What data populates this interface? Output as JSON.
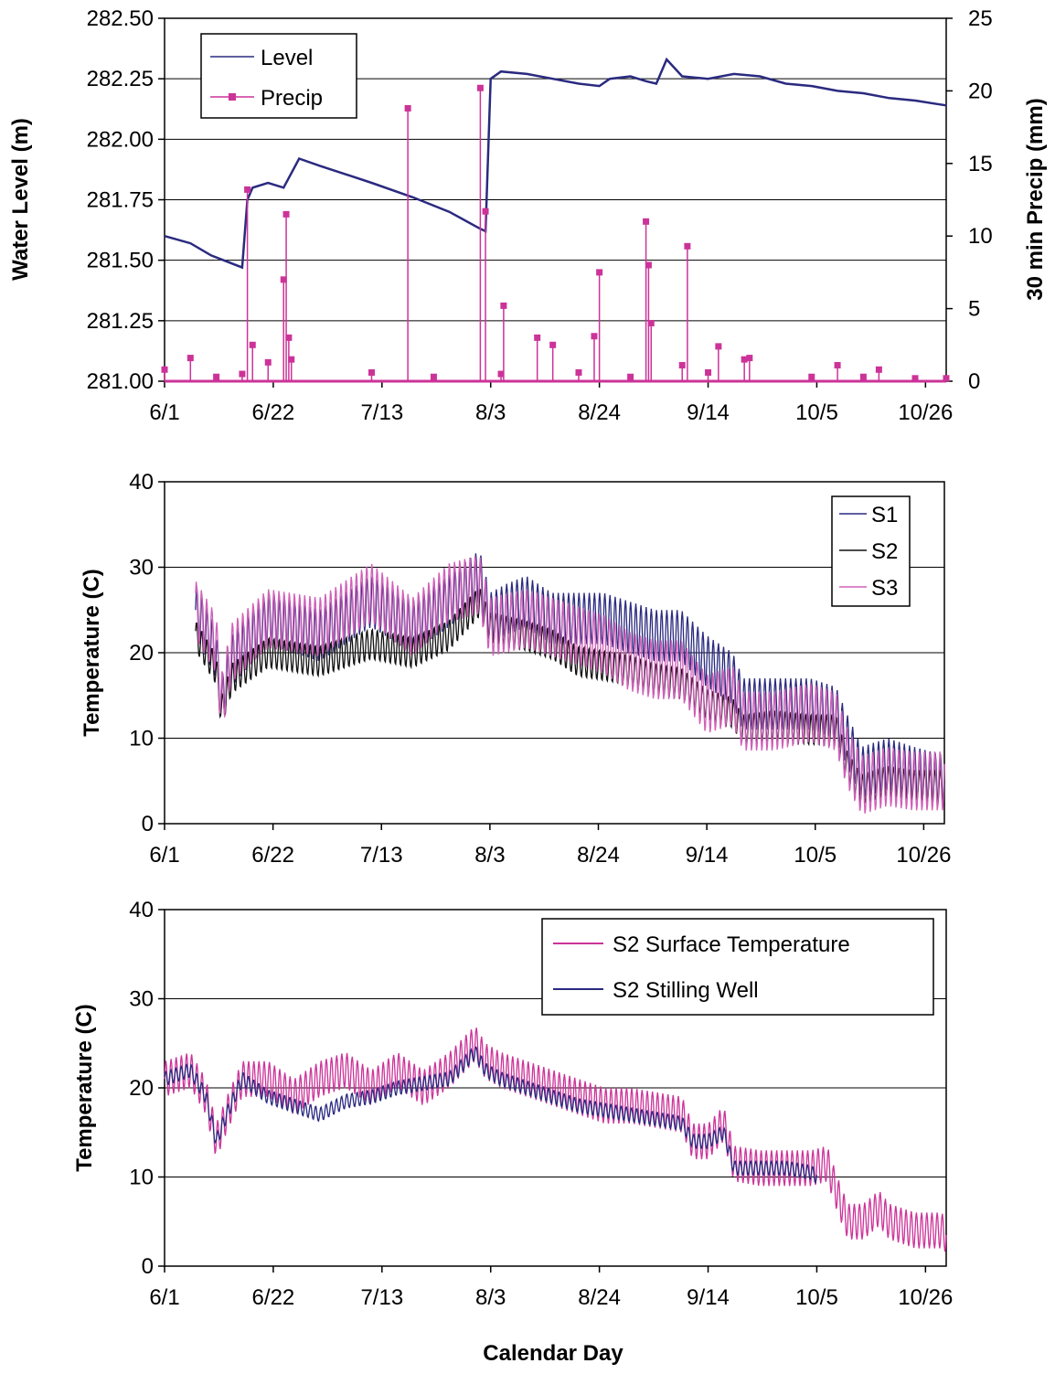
{
  "xlabel": "Calendar Day",
  "x_ticks": [
    "6/1",
    "6/22",
    "7/13",
    "8/3",
    "8/24",
    "9/14",
    "10/5",
    "10/26"
  ],
  "x_tick_days": [
    0,
    21,
    42,
    63,
    84,
    105,
    126,
    147
  ],
  "chart_data": [
    {
      "type": "line",
      "ylabel": "Water Level (m)",
      "y2label": "30 min Precip (mm)",
      "ylim": [
        281.0,
        282.5
      ],
      "y_ticks": [
        "281.00",
        "281.25",
        "281.50",
        "281.75",
        "282.00",
        "282.25",
        "282.50"
      ],
      "y2lim": [
        0,
        25
      ],
      "y2_ticks": [
        "0",
        "5",
        "10",
        "15",
        "20",
        "25"
      ],
      "xlim_days": [
        0,
        151
      ],
      "legend_position": "top-left",
      "grid": "horizontal",
      "series": [
        {
          "name": "Level",
          "color": "#2a2a80",
          "axis": "left",
          "points": [
            [
              0,
              281.6
            ],
            [
              5,
              281.57
            ],
            [
              9,
              281.52
            ],
            [
              15,
              281.47
            ],
            [
              16,
              281.75
            ],
            [
              17,
              281.8
            ],
            [
              20,
              281.82
            ],
            [
              23,
              281.8
            ],
            [
              26,
              281.92
            ],
            [
              30,
              281.89
            ],
            [
              40,
              281.82
            ],
            [
              48,
              281.76
            ],
            [
              55,
              281.7
            ],
            [
              61,
              281.63
            ],
            [
              62,
              281.62
            ],
            [
              63,
              282.25
            ],
            [
              65,
              282.28
            ],
            [
              70,
              282.27
            ],
            [
              75,
              282.25
            ],
            [
              80,
              282.23
            ],
            [
              84,
              282.22
            ],
            [
              86,
              282.25
            ],
            [
              90,
              282.26
            ],
            [
              93,
              282.24
            ],
            [
              95,
              282.23
            ],
            [
              97,
              282.33
            ],
            [
              100,
              282.26
            ],
            [
              105,
              282.25
            ],
            [
              110,
              282.27
            ],
            [
              115,
              282.26
            ],
            [
              120,
              282.23
            ],
            [
              125,
              282.22
            ],
            [
              130,
              282.2
            ],
            [
              135,
              282.19
            ],
            [
              140,
              282.17
            ],
            [
              145,
              282.16
            ],
            [
              151,
              282.14
            ]
          ]
        },
        {
          "name": "Precip",
          "color": "#cc3399",
          "axis": "right",
          "points": [
            [
              0,
              0.8
            ],
            [
              5,
              1.6
            ],
            [
              10,
              0.3
            ],
            [
              15,
              0.5
            ],
            [
              16,
              13.2
            ],
            [
              17,
              2.5
            ],
            [
              20,
              1.3
            ],
            [
              23,
              7
            ],
            [
              23.5,
              11.5
            ],
            [
              24,
              3
            ],
            [
              24.5,
              1.5
            ],
            [
              40,
              0.6
            ],
            [
              47,
              18.8
            ],
            [
              52,
              0.3
            ],
            [
              61,
              20.2
            ],
            [
              62,
              11.7
            ],
            [
              65,
              0.5
            ],
            [
              65.5,
              5.2
            ],
            [
              72,
              3
            ],
            [
              75,
              2.5
            ],
            [
              80,
              0.6
            ],
            [
              83,
              3.1
            ],
            [
              84,
              7.5
            ],
            [
              90,
              0.3
            ],
            [
              93,
              11
            ],
            [
              93.5,
              8
            ],
            [
              94,
              4
            ],
            [
              100,
              1.1
            ],
            [
              101,
              9.3
            ],
            [
              105,
              0.6
            ],
            [
              107,
              2.4
            ],
            [
              112,
              1.5
            ],
            [
              113,
              1.6
            ],
            [
              125,
              0.3
            ],
            [
              130,
              1.1
            ],
            [
              135,
              0.3
            ],
            [
              138,
              0.8
            ],
            [
              145,
              0.2
            ],
            [
              151,
              0.2
            ]
          ]
        }
      ]
    },
    {
      "type": "line",
      "ylabel": "Temperature (C)",
      "ylim": [
        0,
        40
      ],
      "y_ticks": [
        "0",
        "10",
        "20",
        "30",
        "40"
      ],
      "xlim_days": [
        0,
        151
      ],
      "legend_position": "top-right",
      "grid": "horizontal",
      "series": [
        {
          "name": "S1",
          "color": "#2a2a80",
          "base": [
            [
              6,
              25
            ],
            [
              10,
              20
            ],
            [
              11,
              14
            ],
            [
              13,
              19
            ],
            [
              20,
              24
            ],
            [
              30,
              22
            ],
            [
              40,
              26
            ],
            [
              48,
              23
            ],
            [
              55,
              26
            ],
            [
              61,
              29
            ],
            [
              63,
              24
            ],
            [
              66,
              25
            ],
            [
              70,
              26
            ],
            [
              75,
              24
            ],
            [
              80,
              24
            ],
            [
              85,
              24
            ],
            [
              90,
              23
            ],
            [
              95,
              22
            ],
            [
              100,
              22
            ],
            [
              105,
              19
            ],
            [
              110,
              17
            ],
            [
              112,
              14
            ],
            [
              118,
              14
            ],
            [
              125,
              14
            ],
            [
              130,
              13
            ],
            [
              132,
              10
            ],
            [
              135,
              6
            ],
            [
              140,
              7
            ],
            [
              145,
              6
            ],
            [
              151,
              5
            ]
          ],
          "amplitude": 3.0
        },
        {
          "name": "S2",
          "color": "#111111",
          "base": [
            [
              6,
              22
            ],
            [
              10,
              18
            ],
            [
              11,
              13
            ],
            [
              13,
              17
            ],
            [
              20,
              20
            ],
            [
              30,
              19
            ],
            [
              40,
              21
            ],
            [
              48,
              20
            ],
            [
              55,
              22
            ],
            [
              61,
              26
            ],
            [
              63,
              23
            ],
            [
              70,
              22
            ],
            [
              75,
              21
            ],
            [
              80,
              19
            ],
            [
              85,
              18.5
            ],
            [
              90,
              18
            ],
            [
              95,
              17
            ],
            [
              100,
              16.5
            ],
            [
              105,
              14
            ],
            [
              110,
              13
            ],
            [
              112,
              11
            ],
            [
              118,
              11.5
            ],
            [
              125,
              11
            ],
            [
              130,
              11
            ],
            [
              132,
              7
            ],
            [
              135,
              4
            ],
            [
              140,
              5
            ],
            [
              145,
              4.5
            ],
            [
              151,
              4.5
            ]
          ],
          "amplitude": 1.8
        },
        {
          "name": "S3",
          "color": "#d060b8",
          "base": [
            [
              6,
              25
            ],
            [
              10,
              21
            ],
            [
              11,
              14
            ],
            [
              13,
              20
            ],
            [
              20,
              24
            ],
            [
              30,
              23
            ],
            [
              40,
              27
            ],
            [
              48,
              23
            ],
            [
              55,
              27
            ],
            [
              61,
              28
            ],
            [
              63,
              23
            ],
            [
              70,
              24
            ],
            [
              75,
              23
            ],
            [
              80,
              22
            ],
            [
              85,
              21
            ],
            [
              90,
              19
            ],
            [
              95,
              18
            ],
            [
              100,
              18
            ],
            [
              105,
              14
            ],
            [
              110,
              15
            ],
            [
              112,
              12
            ],
            [
              118,
              12
            ],
            [
              125,
              13
            ],
            [
              130,
              12
            ],
            [
              132,
              8
            ],
            [
              135,
              4.5
            ],
            [
              140,
              5.5
            ],
            [
              145,
              5
            ],
            [
              151,
              5
            ]
          ],
          "amplitude": 3.5
        }
      ]
    },
    {
      "type": "line",
      "ylabel": "Temperature (C)",
      "ylim": [
        0,
        40
      ],
      "y_ticks": [
        "0",
        "10",
        "20",
        "30",
        "40"
      ],
      "xlim_days": [
        0,
        151
      ],
      "legend_position": "top-right",
      "grid": "horizontal",
      "series": [
        {
          "name": "S2 Surface Temperature",
          "color": "#cc3399",
          "base": [
            [
              0,
              21
            ],
            [
              5,
              22
            ],
            [
              8,
              19
            ],
            [
              10,
              14
            ],
            [
              12,
              17
            ],
            [
              15,
              21
            ],
            [
              20,
              21
            ],
            [
              25,
              19
            ],
            [
              30,
              21
            ],
            [
              35,
              22
            ],
            [
              40,
              20
            ],
            [
              45,
              22
            ],
            [
              50,
              20
            ],
            [
              55,
              22
            ],
            [
              60,
              25
            ],
            [
              62,
              23
            ],
            [
              65,
              22
            ],
            [
              70,
              21
            ],
            [
              75,
              20
            ],
            [
              80,
              19
            ],
            [
              85,
              18
            ],
            [
              90,
              18
            ],
            [
              95,
              17.5
            ],
            [
              100,
              17
            ],
            [
              102,
              14
            ],
            [
              105,
              14
            ],
            [
              108,
              16
            ],
            [
              110,
              11.5
            ],
            [
              115,
              11
            ],
            [
              120,
              11
            ],
            [
              125,
              11
            ],
            [
              128,
              11.5
            ],
            [
              130,
              8
            ],
            [
              132,
              5
            ],
            [
              135,
              5
            ],
            [
              138,
              6.5
            ],
            [
              140,
              5
            ],
            [
              145,
              4
            ],
            [
              150,
              4
            ],
            [
              151,
              3.5
            ]
          ],
          "amplitude": 2.0
        },
        {
          "name": "S2 Stilling Well",
          "color": "#2a2a80",
          "base": [
            [
              0,
              21
            ],
            [
              5,
              22
            ],
            [
              8,
              19
            ],
            [
              10,
              14
            ],
            [
              12,
              17
            ],
            [
              15,
              21
            ],
            [
              20,
              19
            ],
            [
              25,
              18
            ],
            [
              30,
              17
            ],
            [
              35,
              18.5
            ],
            [
              40,
              19
            ],
            [
              45,
              20
            ],
            [
              50,
              20.5
            ],
            [
              55,
              21
            ],
            [
              60,
              24
            ],
            [
              62,
              22
            ],
            [
              65,
              21
            ],
            [
              70,
              20
            ],
            [
              75,
              19
            ],
            [
              80,
              18
            ],
            [
              85,
              17.5
            ],
            [
              90,
              17
            ],
            [
              95,
              16.5
            ],
            [
              100,
              16
            ],
            [
              102,
              14
            ],
            [
              105,
              14
            ],
            [
              108,
              15
            ],
            [
              110,
              11
            ],
            [
              115,
              11
            ],
            [
              120,
              11
            ],
            [
              125,
              10.5
            ],
            [
              126,
              10
            ]
          ],
          "amplitude": 0.8
        }
      ]
    }
  ]
}
